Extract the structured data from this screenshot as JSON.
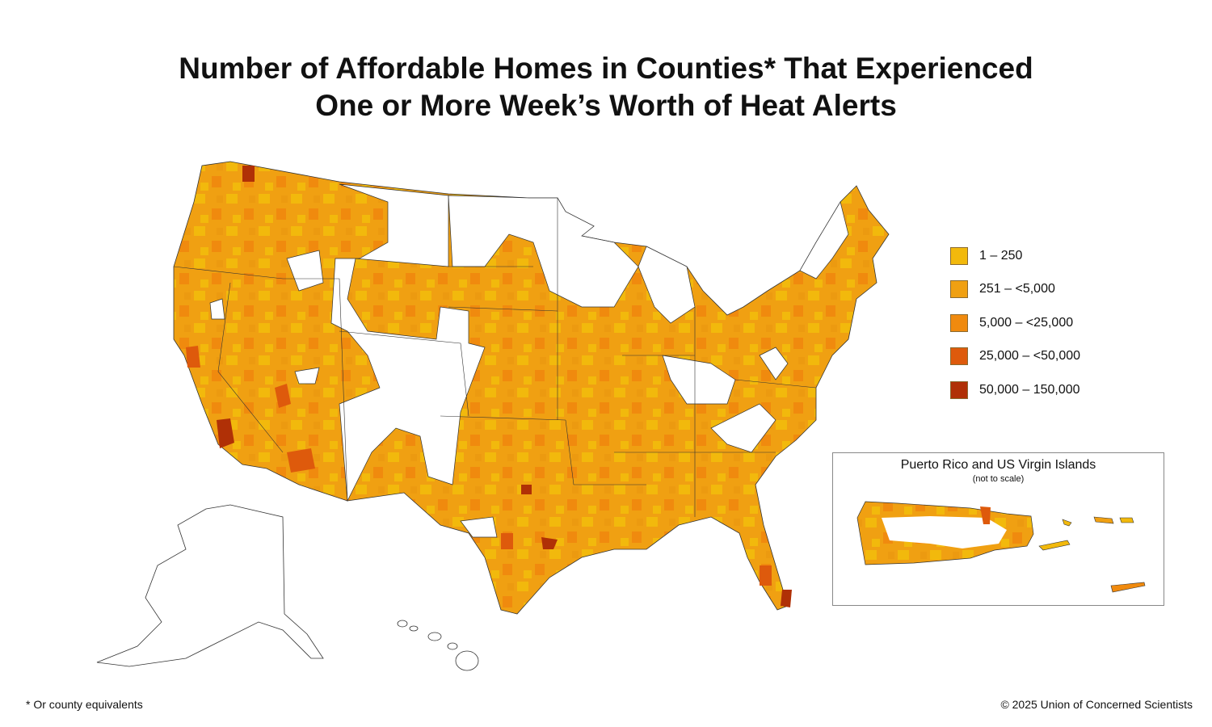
{
  "title": {
    "line1": "Number of Affordable Homes in Counties* That Experienced",
    "line2": "One or More Week’s Worth of Heat Alerts"
  },
  "legend": [
    {
      "label": "1 – 250",
      "color": "#f2b90c"
    },
    {
      "label": "251 – <5,000",
      "color": "#f0a012"
    },
    {
      "label": "5,000 – <25,000",
      "color": "#f08a0e"
    },
    {
      "label": "25,000 – <50,000",
      "color": "#de5a0c"
    },
    {
      "label": "50,000 – 150,000",
      "color": "#b03006"
    }
  ],
  "inset": {
    "title": "Puerto Rico and US Virgin Islands",
    "subtitle": "(not to scale)"
  },
  "footnote": "* Or county equivalents",
  "copyright": "© 2025 Union of Concerned Scientists"
}
